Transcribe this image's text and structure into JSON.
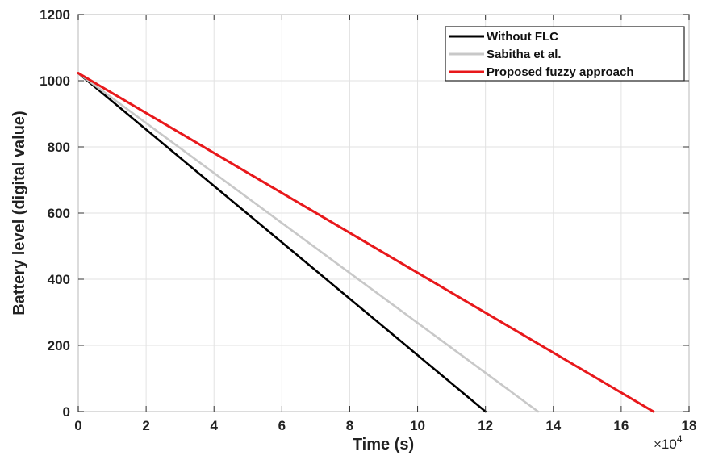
{
  "chart_data": {
    "type": "line",
    "xlabel": "Time (s)",
    "ylabel": "Battery level (digital value)",
    "x_multiplier": "×10",
    "x_multiplier_exp": "4",
    "xlim": [
      0,
      18
    ],
    "ylim": [
      0,
      1200
    ],
    "x_ticks": [
      0,
      2,
      4,
      6,
      8,
      10,
      12,
      14,
      16,
      18
    ],
    "y_ticks": [
      0,
      200,
      400,
      600,
      800,
      1000,
      1200
    ],
    "grid": true,
    "legend_position": "top-right",
    "series": [
      {
        "name": "Without FLC",
        "color": "#000000",
        "x": [
          0,
          12
        ],
        "y": [
          1023,
          0
        ]
      },
      {
        "name": "Sabitha et al.",
        "color": "#c8c8c8",
        "x": [
          0,
          13.55
        ],
        "y": [
          1023,
          0
        ]
      },
      {
        "name": "Proposed fuzzy approach",
        "color": "#e8181b",
        "x": [
          0,
          16.95
        ],
        "y": [
          1023,
          0
        ]
      }
    ]
  }
}
